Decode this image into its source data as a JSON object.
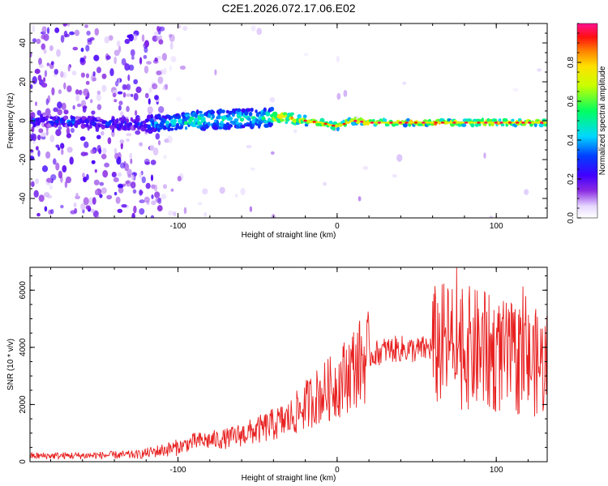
{
  "title": "C2E1.2026.072.17.06.E02",
  "chart_data": [
    {
      "type": "heatmap",
      "xlabel": "Height of straight line (km)",
      "ylabel": "Frequency (Hz)",
      "xlim": [
        -193,
        132
      ],
      "ylim": [
        -50,
        50
      ],
      "xticks": [
        -100,
        0,
        100
      ],
      "yticks": [
        40,
        20,
        0,
        -20,
        -40
      ],
      "colorbar": {
        "label": "Normalized spectral amplitude",
        "range": [
          0,
          1
        ],
        "ticks": [
          "0.0",
          "0.2",
          "0.4",
          "0.6",
          "0.8"
        ],
        "tick_values": [
          0.0,
          0.2,
          0.4,
          0.6,
          0.8
        ]
      },
      "ridge": {
        "description_points": [
          {
            "x": -185,
            "f": 0
          },
          {
            "x": -120,
            "f": -2
          },
          {
            "x": -90,
            "f": 0
          },
          {
            "x": -60,
            "f": 1
          },
          {
            "x": -35,
            "f": 2
          },
          {
            "x": -20,
            "f": 0
          },
          {
            "x": -10,
            "f": -1
          },
          {
            "x": 0,
            "f": -3
          },
          {
            "x": 10,
            "f": 0
          },
          {
            "x": 20,
            "f": -1
          },
          {
            "x": 60,
            "f": -1
          },
          {
            "x": 100,
            "f": -1
          },
          {
            "x": 132,
            "f": -1
          }
        ]
      }
    },
    {
      "type": "line",
      "xlabel": "Height of straight line (km)",
      "ylabel": "SNR (10 * v/v)",
      "xlim": [
        -193,
        132
      ],
      "ylim": [
        0,
        6800
      ],
      "xticks": [
        -100,
        0,
        100
      ],
      "yticks": [
        0,
        2000,
        4000,
        6000
      ],
      "series": [
        {
          "name": "SNR",
          "color": "#e82020",
          "envelope_x": [
            -193,
            -150,
            -125,
            -100,
            -90,
            -70,
            -50,
            -30,
            -15,
            0,
            10,
            20,
            30,
            40,
            50,
            60,
            70,
            80,
            90,
            100,
            110,
            120,
            132
          ],
          "envelope_y": [
            200,
            220,
            250,
            500,
            700,
            800,
            1100,
            1500,
            2200,
            2700,
            3300,
            3700,
            3900,
            3950,
            3900,
            4000,
            4100,
            4000,
            3900,
            3700,
            3600,
            3500,
            3400
          ]
        }
      ]
    }
  ]
}
